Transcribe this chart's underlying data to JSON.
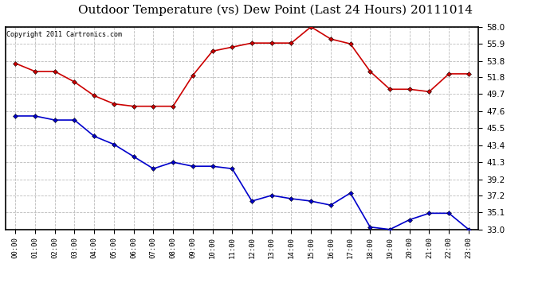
{
  "title": "Outdoor Temperature (vs) Dew Point (Last 24 Hours) 20111014",
  "copyright": "Copyright 2011 Cartronics.com",
  "hours": [
    "00:00",
    "01:00",
    "02:00",
    "03:00",
    "04:00",
    "05:00",
    "06:00",
    "07:00",
    "08:00",
    "09:00",
    "10:00",
    "11:00",
    "12:00",
    "13:00",
    "14:00",
    "15:00",
    "16:00",
    "17:00",
    "18:00",
    "19:00",
    "20:00",
    "21:00",
    "22:00",
    "23:00"
  ],
  "temp": [
    53.5,
    52.5,
    52.5,
    51.2,
    49.5,
    48.5,
    48.2,
    48.2,
    48.2,
    52.0,
    55.0,
    55.5,
    56.0,
    56.0,
    56.0,
    58.0,
    56.5,
    55.9,
    52.5,
    50.3,
    50.3,
    50.0,
    52.2,
    52.2
  ],
  "dew": [
    47.0,
    47.0,
    46.5,
    46.5,
    44.5,
    43.5,
    42.0,
    40.5,
    41.3,
    40.8,
    40.8,
    40.5,
    36.5,
    37.2,
    36.8,
    36.5,
    36.0,
    37.5,
    33.3,
    33.0,
    34.2,
    35.0,
    35.0,
    33.0
  ],
  "temp_color": "#cc0000",
  "dew_color": "#0000cc",
  "bg_color": "#ffffff",
  "plot_bg_color": "#ffffff",
  "grid_color": "#bbbbbb",
  "ylim_min": 33.0,
  "ylim_max": 58.0,
  "yticks": [
    33.0,
    35.1,
    37.2,
    39.2,
    41.3,
    43.4,
    45.5,
    47.6,
    49.7,
    51.8,
    53.8,
    55.9,
    58.0
  ],
  "title_fontsize": 11,
  "copyright_fontsize": 6,
  "markersize": 3,
  "linewidth": 1.2
}
